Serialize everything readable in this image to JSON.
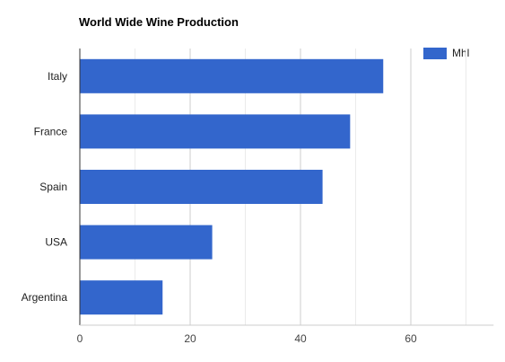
{
  "chart_data": {
    "type": "bar",
    "orientation": "horizontal",
    "title": "World Wide Wine Production",
    "categories": [
      "Italy",
      "France",
      "Spain",
      "USA",
      "Argentina"
    ],
    "series": [
      {
        "name": "Mhl",
        "color": "#3366cc",
        "values": [
          55,
          49,
          44,
          24,
          15
        ]
      }
    ],
    "xlim": [
      0,
      75
    ],
    "xticks": [
      0,
      20,
      40,
      60
    ],
    "xtick_labels": [
      "0",
      "20",
      "40",
      "60"
    ],
    "xlabel": "",
    "ylabel": "",
    "grid": true,
    "legend_position": "top-right"
  }
}
